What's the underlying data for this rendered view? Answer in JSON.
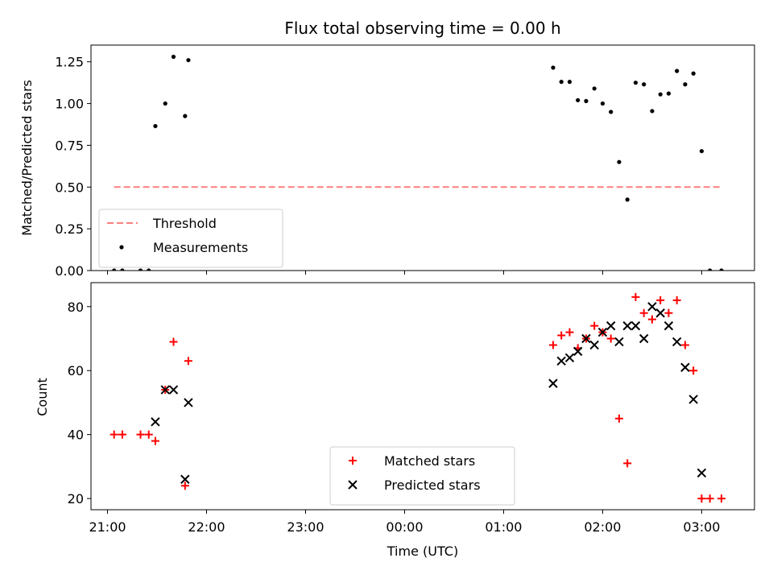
{
  "chart_data": [
    {
      "type": "scatter",
      "title": "Flux total observing time = 0.00 h",
      "ylabel": "Matched/Predicted stars",
      "xlabel": "",
      "xlim": [
        "20:50",
        "03:32"
      ],
      "ylim": [
        0,
        1.35
      ],
      "y_ticks": [
        "0.00",
        "0.25",
        "0.50",
        "0.75",
        "1.00",
        "1.25"
      ],
      "x_ticks": [
        "21:00",
        "22:00",
        "23:00",
        "00:00",
        "01:00",
        "02:00",
        "03:00"
      ],
      "show_x_tick_labels": false,
      "legend_position": "lower left",
      "series": [
        {
          "name": "Threshold",
          "kind": "dashed-line",
          "color": "#ff7f7f",
          "x": [
            "21:04",
            "03:12"
          ],
          "y": [
            0.5,
            0.5
          ]
        },
        {
          "name": "Measurements",
          "kind": "dot",
          "color": "#000000",
          "points": [
            [
              "21:04",
              0.0
            ],
            [
              "21:09",
              0.0
            ],
            [
              "21:20",
              0.0
            ],
            [
              "21:25",
              0.0
            ],
            [
              "21:29",
              0.865
            ],
            [
              "21:35",
              1.0
            ],
            [
              "21:40",
              1.28
            ],
            [
              "21:47",
              0.925
            ],
            [
              "21:49",
              1.26
            ],
            [
              "01:30",
              1.215
            ],
            [
              "01:35",
              1.13
            ],
            [
              "01:40",
              1.13
            ],
            [
              "01:45",
              1.02
            ],
            [
              "01:50",
              1.015
            ],
            [
              "01:55",
              1.09
            ],
            [
              "02:00",
              1.0
            ],
            [
              "02:05",
              0.95
            ],
            [
              "02:10",
              0.65
            ],
            [
              "02:15",
              0.425
            ],
            [
              "02:20",
              1.125
            ],
            [
              "02:25",
              1.115
            ],
            [
              "02:30",
              0.955
            ],
            [
              "02:35",
              1.055
            ],
            [
              "02:40",
              1.06
            ],
            [
              "02:45",
              1.195
            ],
            [
              "02:50",
              1.115
            ],
            [
              "02:55",
              1.18
            ],
            [
              "03:00",
              0.715
            ],
            [
              "03:05",
              0.0
            ],
            [
              "03:12",
              0.0
            ]
          ]
        }
      ]
    },
    {
      "type": "scatter",
      "title": "",
      "ylabel": "Count",
      "xlabel": "Time (UTC)",
      "xlim": [
        "20:50",
        "03:32"
      ],
      "ylim": [
        16.5,
        87.5
      ],
      "y_ticks": [
        "20",
        "40",
        "60",
        "80"
      ],
      "x_ticks": [
        "21:00",
        "22:00",
        "23:00",
        "00:00",
        "01:00",
        "02:00",
        "03:00"
      ],
      "show_x_tick_labels": true,
      "legend_position": "lower center",
      "series": [
        {
          "name": "Matched stars",
          "kind": "plus",
          "color": "#ff0000",
          "points": [
            [
              "21:04",
              40
            ],
            [
              "21:09",
              40
            ],
            [
              "21:20",
              40
            ],
            [
              "21:25",
              40
            ],
            [
              "21:29",
              38
            ],
            [
              "21:35",
              54
            ],
            [
              "21:40",
              69
            ],
            [
              "21:47",
              24
            ],
            [
              "21:49",
              63
            ],
            [
              "01:30",
              68
            ],
            [
              "01:35",
              71
            ],
            [
              "01:40",
              72
            ],
            [
              "01:45",
              67
            ],
            [
              "01:50",
              70
            ],
            [
              "01:55",
              74
            ],
            [
              "02:00",
              72
            ],
            [
              "02:05",
              70
            ],
            [
              "02:10",
              45
            ],
            [
              "02:15",
              31
            ],
            [
              "02:20",
              83
            ],
            [
              "02:25",
              78
            ],
            [
              "02:30",
              76
            ],
            [
              "02:35",
              82
            ],
            [
              "02:40",
              78
            ],
            [
              "02:45",
              82
            ],
            [
              "02:50",
              68
            ],
            [
              "02:55",
              60
            ],
            [
              "03:00",
              20
            ],
            [
              "03:05",
              20
            ],
            [
              "03:12",
              20
            ]
          ]
        },
        {
          "name": "Predicted stars",
          "kind": "x",
          "color": "#000000",
          "points": [
            [
              "21:29",
              44
            ],
            [
              "21:35",
              54
            ],
            [
              "21:40",
              54
            ],
            [
              "21:47",
              26
            ],
            [
              "21:49",
              50
            ],
            [
              "01:30",
              56
            ],
            [
              "01:35",
              63
            ],
            [
              "01:40",
              64
            ],
            [
              "01:45",
              66
            ],
            [
              "01:50",
              70
            ],
            [
              "01:55",
              68
            ],
            [
              "02:00",
              72
            ],
            [
              "02:05",
              74
            ],
            [
              "02:10",
              69
            ],
            [
              "02:15",
              74
            ],
            [
              "02:20",
              74
            ],
            [
              "02:25",
              70
            ],
            [
              "02:30",
              80
            ],
            [
              "02:35",
              78
            ],
            [
              "02:40",
              74
            ],
            [
              "02:45",
              69
            ],
            [
              "02:50",
              61
            ],
            [
              "02:55",
              51
            ],
            [
              "03:00",
              28
            ]
          ]
        }
      ]
    }
  ]
}
